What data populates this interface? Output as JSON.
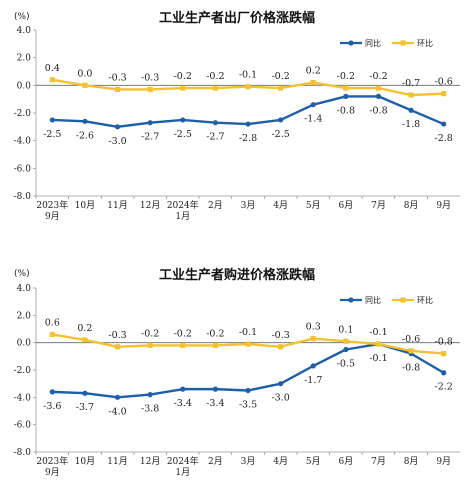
{
  "colors": {
    "yoy": "#1f5fa8",
    "mom": "#f2c230",
    "axis": "#999999",
    "zero": "#666666"
  },
  "chart_data": [
    {
      "type": "line",
      "title": "工业生产者出厂价格涨跌幅",
      "unit": "(%)",
      "ylim": [
        -8,
        4
      ],
      "yticks": [
        "4.0",
        "2.0",
        "0.0",
        "-2.0",
        "-4.0",
        "-6.0",
        "-8.0"
      ],
      "categories": [
        [
          "2023年",
          "9月"
        ],
        [
          "10月"
        ],
        [
          "11月"
        ],
        [
          "12月"
        ],
        [
          "2024年",
          "1月"
        ],
        [
          "2月"
        ],
        [
          "3月"
        ],
        [
          "4月"
        ],
        [
          "5月"
        ],
        [
          "6月"
        ],
        [
          "7月"
        ],
        [
          "8月"
        ],
        [
          "9月"
        ]
      ],
      "legend": {
        "position": "top-right"
      },
      "series": [
        {
          "name": "同比",
          "color": "#1f5fa8",
          "values": [
            -2.5,
            -2.6,
            -3.0,
            -2.7,
            -2.5,
            -2.7,
            -2.8,
            -2.5,
            -1.4,
            -0.8,
            -0.8,
            -1.8,
            -2.8
          ],
          "labels": [
            "-2.5",
            "-2.6",
            "-3.0",
            "-2.7",
            "-2.5",
            "-2.7",
            "-2.8",
            "-2.5",
            "-1.4",
            "-0.8",
            "-0.8",
            "-1.8",
            "-2.8"
          ]
        },
        {
          "name": "环比",
          "color": "#f2c230",
          "values": [
            0.4,
            0.0,
            -0.3,
            -0.3,
            -0.2,
            -0.2,
            -0.1,
            -0.2,
            0.2,
            -0.2,
            -0.2,
            -0.7,
            -0.6
          ],
          "labels": [
            "0.4",
            "0.0",
            "-0.3",
            "-0.3",
            "-0.2",
            "-0.2",
            "-0.1",
            "-0.2",
            "0.2",
            "-0.2",
            "-0.2",
            "-0.7",
            "-0.6"
          ]
        }
      ]
    },
    {
      "type": "line",
      "title": "工业生产者购进价格涨跌幅",
      "unit": "(%)",
      "ylim": [
        -8,
        4
      ],
      "yticks": [
        "4.0",
        "2.0",
        "0.0",
        "-2.0",
        "-4.0",
        "-6.0",
        "-8.0"
      ],
      "categories": [
        [
          "2023年",
          "9月"
        ],
        [
          "10月"
        ],
        [
          "11月"
        ],
        [
          "12月"
        ],
        [
          "2024年",
          "1月"
        ],
        [
          "2月"
        ],
        [
          "3月"
        ],
        [
          "4月"
        ],
        [
          "5月"
        ],
        [
          "6月"
        ],
        [
          "7月"
        ],
        [
          "8月"
        ],
        [
          "9月"
        ]
      ],
      "legend": {
        "position": "top-right"
      },
      "series": [
        {
          "name": "同比",
          "color": "#1f5fa8",
          "values": [
            -3.6,
            -3.7,
            -4.0,
            -3.8,
            -3.4,
            -3.4,
            -3.5,
            -3.0,
            -1.7,
            -0.5,
            -0.1,
            -0.8,
            -2.2
          ],
          "labels": [
            "-3.6",
            "-3.7",
            "-4.0",
            "-3.8",
            "-3.4",
            "-3.4",
            "-3.5",
            "-3.0",
            "-1.7",
            "-0.5",
            "-0.1",
            "-0.8",
            "-2.2"
          ]
        },
        {
          "name": "环比",
          "color": "#f2c230",
          "values": [
            0.6,
            0.2,
            -0.3,
            -0.2,
            -0.2,
            -0.2,
            -0.1,
            -0.3,
            0.3,
            0.1,
            -0.1,
            -0.6,
            -0.8
          ],
          "labels": [
            "0.6",
            "0.2",
            "-0.3",
            "-0.2",
            "-0.2",
            "-0.2",
            "-0.1",
            "-0.3",
            "0.3",
            "0.1",
            "-0.1",
            "-0.6",
            "-0.8"
          ]
        }
      ]
    }
  ]
}
